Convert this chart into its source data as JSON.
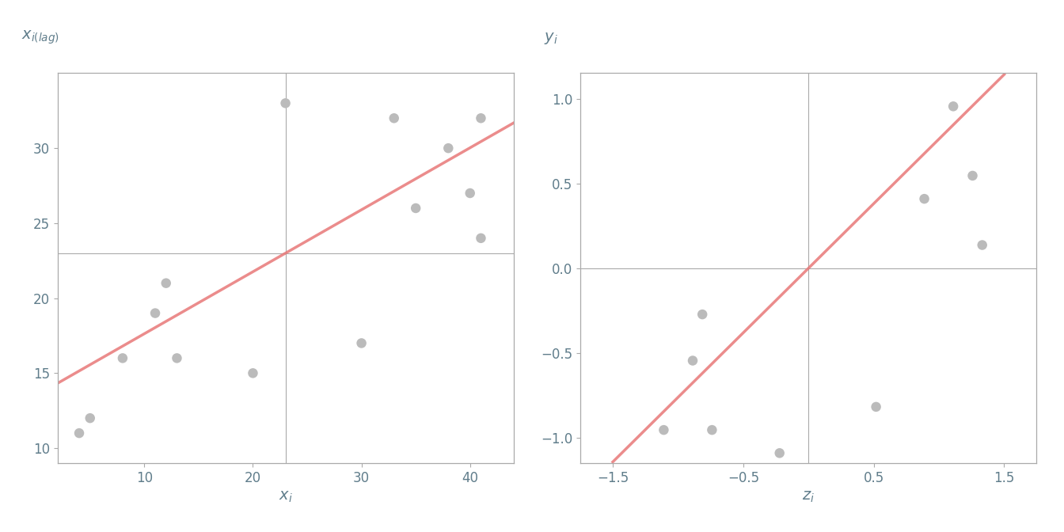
{
  "points_left": [
    [
      4,
      11
    ],
    [
      5,
      12
    ],
    [
      8,
      16
    ],
    [
      11,
      19
    ],
    [
      12,
      21
    ],
    [
      13,
      16
    ],
    [
      20,
      15
    ],
    [
      23,
      33
    ],
    [
      30,
      17
    ],
    [
      33,
      32
    ],
    [
      35,
      26
    ],
    [
      38,
      30
    ],
    [
      40,
      27
    ],
    [
      41,
      24
    ],
    [
      41,
      32
    ]
  ],
  "mean_line_x": 23.0,
  "mean_line_y": 23.0,
  "xlim_left": [
    2,
    44
  ],
  "ylim_left": [
    9,
    35
  ],
  "xlim_right": [
    -1.75,
    1.75
  ],
  "ylim_right": [
    -1.15,
    1.15
  ],
  "xticks_left": [
    10,
    20,
    30,
    40
  ],
  "yticks_left": [
    10,
    15,
    20,
    25,
    30
  ],
  "xticks_right": [
    -1.5,
    -0.5,
    0.5,
    1.5
  ],
  "yticks_right": [
    -1.0,
    -0.5,
    0.0,
    0.5,
    1.0
  ],
  "scatter_color": "#bbbbbb",
  "line_color": "#e87878",
  "line_alpha": 0.85,
  "line_width": 2.5,
  "label_color": "#607d8b",
  "label_fontsize": 14,
  "tick_fontsize": 12,
  "background_color": "#ffffff",
  "spine_color": "#aaaaaa",
  "cross_color": "#aaaaaa",
  "cross_lw": 0.8,
  "marker_size": 9
}
